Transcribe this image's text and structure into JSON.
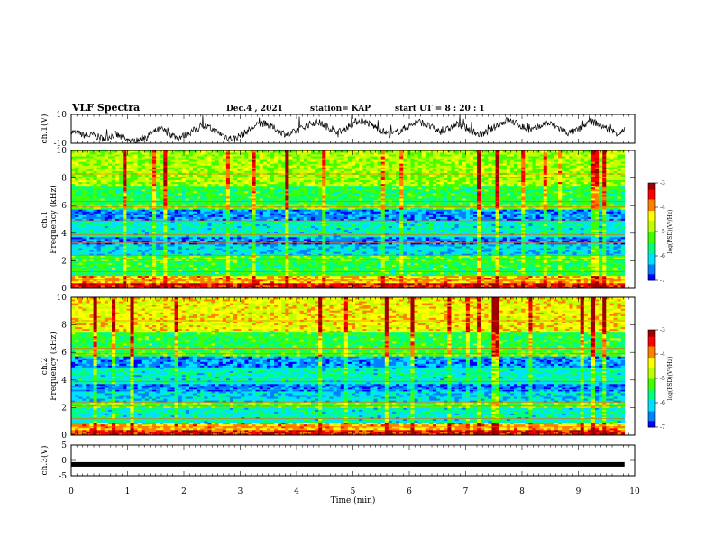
{
  "header": {
    "title": "VLF Spectra",
    "date": "Dec.4 , 2021",
    "station": "station= KAP",
    "start": "start  UT  =  8 : 20 : 1"
  },
  "colors": {
    "spectral_scale": [
      "#000080",
      "#0000ff",
      "#0080ff",
      "#00e0ff",
      "#00ff80",
      "#40ff00",
      "#c0ff00",
      "#ffff00",
      "#ff8000",
      "#ff0000",
      "#a00000"
    ],
    "trace": "#000000"
  },
  "chart_data": [
    {
      "type": "line",
      "name_panel": "ch1-voltage",
      "ylabel": "ch.1(V)",
      "ylim": [
        -10,
        10
      ],
      "ytick_labels": [
        "10",
        "-10"
      ],
      "xlim": [
        0,
        10
      ],
      "x_end": 9.82,
      "description_values": "irregular noisy waveform fluctuating between about -9 and +8 V",
      "series": [
        {
          "values": [
            -2,
            -3,
            -4,
            -5,
            -4,
            -6,
            -7,
            -5,
            -4,
            -6,
            -8,
            -9,
            -8,
            -6,
            -4,
            -2,
            0,
            -2,
            -4,
            -6,
            -5,
            -3,
            -1,
            1,
            2,
            0,
            -2,
            -4,
            -6,
            -7,
            -5,
            -3,
            0,
            2,
            4,
            3,
            1,
            -1,
            -3,
            -4,
            -2,
            0,
            2,
            4,
            5,
            3,
            1,
            -1,
            -2,
            0,
            3,
            5,
            6,
            4,
            2,
            0,
            -2,
            -4,
            -3,
            -1,
            1,
            3,
            5,
            4,
            2,
            0,
            -2,
            -1,
            1,
            3,
            2,
            0,
            -2,
            -4,
            -3,
            -1,
            2,
            4,
            6,
            5,
            3,
            1,
            -1,
            0,
            2,
            4,
            3,
            1,
            -1,
            -3,
            -2,
            0,
            3,
            5,
            4,
            2,
            0,
            -2,
            -3,
            -1
          ]
        }
      ]
    },
    {
      "type": "heatmap",
      "name_panel": "ch1-spectrogram",
      "ylabel": "ch.1",
      "ylabel2": "Frequency  (kHz)",
      "ylim": [
        0,
        10
      ],
      "ytick_labels": [
        "0",
        "2",
        "4",
        "6",
        "8",
        "10"
      ],
      "xlim": [
        0,
        10
      ],
      "colorbar": {
        "label": "log(PSD)(V²/Hz)",
        "range": [
          -7,
          -3
        ],
        "tick_labels": [
          "-3",
          "-4",
          "-5",
          "-6",
          "-7"
        ]
      }
    },
    {
      "type": "heatmap",
      "name_panel": "ch2-spectrogram",
      "ylabel": "ch.2",
      "ylabel2": "Frequency  (kHz)",
      "ylim": [
        0,
        10
      ],
      "ytick_labels": [
        "0",
        "2",
        "4",
        "6",
        "8",
        "10"
      ],
      "xlim": [
        0,
        10
      ],
      "colorbar": {
        "label": "log(PSD)(V²/Hz)",
        "range": [
          -7,
          -3
        ],
        "tick_labels": [
          "-3",
          "-4",
          "-5",
          "-6",
          "-7"
        ]
      }
    },
    {
      "type": "line",
      "name_panel": "ch3-voltage",
      "ylabel": "ch.3(V)",
      "ylim": [
        -5,
        5
      ],
      "ytick_labels": [
        "5",
        "0",
        "-5"
      ],
      "xlim": [
        0,
        10
      ],
      "x_end": 9.82,
      "level": -1.3
    }
  ],
  "xaxis": {
    "label": "Time  (min)",
    "tick_labels": [
      "0",
      "1",
      "2",
      "3",
      "4",
      "5",
      "6",
      "7",
      "8",
      "9",
      "10"
    ]
  }
}
